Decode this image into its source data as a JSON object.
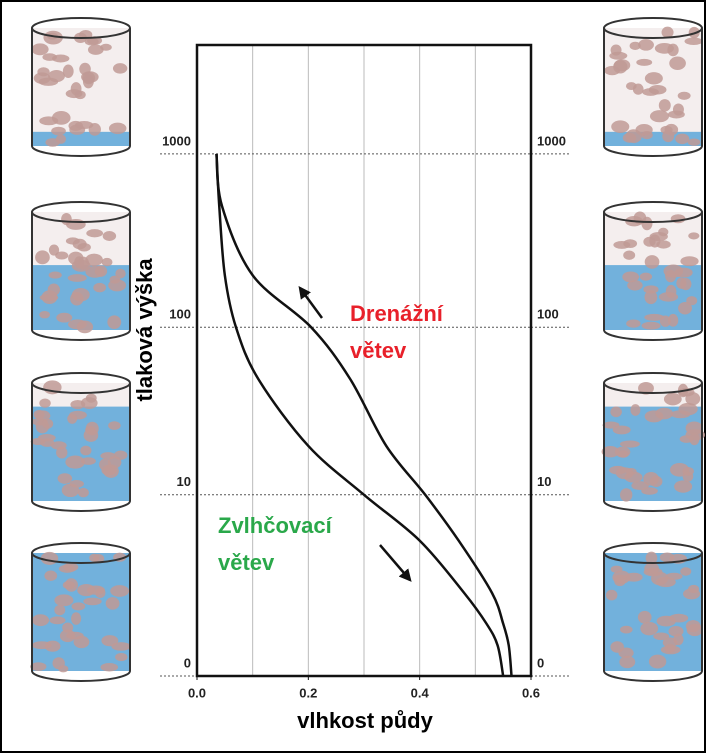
{
  "chart_data": {
    "type": "line",
    "x_label": "vlhkost půdy",
    "y_label": "tlaková výška",
    "yscale": "log1p",
    "xlim": [
      0,
      0.6
    ],
    "xticks": [
      {
        "value": 0,
        "label": "0.0"
      },
      0.2,
      0.4,
      0.6
    ],
    "xgrid": [
      0.1,
      0.2,
      0.3,
      0.4,
      0.5
    ],
    "ylim": [
      0,
      4230
    ],
    "yticks": [
      0,
      10,
      100,
      1000
    ],
    "y2lim": [
      0,
      4230
    ],
    "y2ticks": [
      0,
      10,
      100,
      1000
    ],
    "series": [
      {
        "name_lines": [
          "Drenážní",
          "větev"
        ],
        "color": "#e8202a",
        "line_color": "#111111",
        "x": [
          0.035,
          0.045,
          0.1,
          0.205,
          0.275,
          0.34,
          0.41,
          0.47,
          0.53,
          0.55,
          0.56,
          0.565
        ],
        "values": [
          1000,
          500,
          200,
          100,
          50,
          20,
          10,
          5,
          2,
          1,
          0.5,
          0
        ]
      },
      {
        "name_lines": [
          "Zvlhčovací",
          "větev"
        ],
        "color": "#2aa84a",
        "line_color": "#111111",
        "x": [
          0.035,
          0.04,
          0.05,
          0.07,
          0.11,
          0.2,
          0.3,
          0.4,
          0.48,
          0.52,
          0.54,
          0.55
        ],
        "values": [
          1000,
          500,
          200,
          100,
          50,
          20,
          10,
          5,
          2,
          1,
          0.5,
          0
        ]
      }
    ]
  }
}
